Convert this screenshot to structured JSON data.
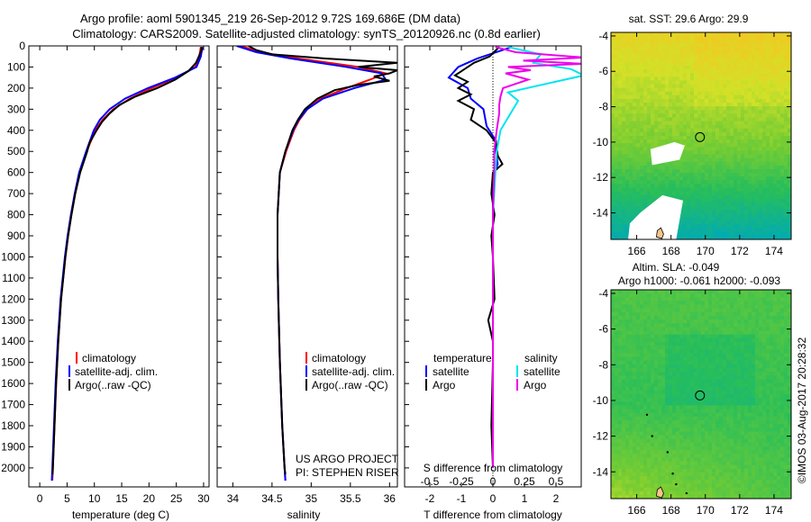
{
  "header": {
    "title_line1": "Argo profile: aoml 5901345_219 26-Sep-2012 9.72S 169.686E (DM data)",
    "title_line2": "Climatology: CARS2009. Satellite-adjusted climatology: synTS_20120926.nc (0.8d earlier)"
  },
  "colors": {
    "climatology": "#ff0000",
    "satellite": "#0000ff",
    "argo": "#000000",
    "t_sat": "#0000ff",
    "t_argo": "#000000",
    "s_sat": "#00e5ee",
    "s_argo": "#ee00ee"
  },
  "chart_data": [
    {
      "type": "line",
      "id": "temperature",
      "xlabel": "temperature (deg C)",
      "ylabel": "",
      "xlim": [
        -2,
        31
      ],
      "ylim": [
        2090,
        0
      ],
      "xticks": [
        0,
        5,
        10,
        15,
        20,
        25,
        30
      ],
      "yticks": [
        0,
        100,
        200,
        300,
        400,
        500,
        600,
        700,
        800,
        900,
        1000,
        1100,
        1200,
        1300,
        1400,
        1500,
        1600,
        1700,
        1800,
        1900,
        2000
      ],
      "legend": {
        "position": "bottom-left",
        "entries": [
          "climatology",
          "satellite-adj. clim.",
          "Argo(..raw -QC)"
        ]
      },
      "series": [
        {
          "name": "climatology",
          "color": "#ff0000",
          "depth": [
            5,
            50,
            100,
            150,
            200,
            250,
            300,
            350,
            400,
            500,
            600,
            700,
            800,
            900,
            1000,
            1200,
            1400,
            1600,
            1800,
            2000,
            2060
          ],
          "values": [
            29.5,
            29.2,
            28.5,
            25,
            20.5,
            16.5,
            13.5,
            11.5,
            10.2,
            8.6,
            7.3,
            6.5,
            5.8,
            5.2,
            4.7,
            3.9,
            3.4,
            3.0,
            2.7,
            2.4,
            2.3
          ]
        },
        {
          "name": "satellite-adj. clim.",
          "color": "#0000ff",
          "depth": [
            5,
            50,
            100,
            150,
            200,
            250,
            300,
            350,
            400,
            500,
            600,
            700,
            800,
            900,
            1000,
            1200,
            1400,
            1600,
            1800,
            2000,
            2060
          ],
          "values": [
            29.8,
            29.5,
            28.7,
            24.8,
            19.8,
            15.6,
            12.8,
            11.0,
            9.9,
            8.5,
            7.2,
            6.4,
            5.7,
            5.1,
            4.6,
            3.8,
            3.3,
            2.9,
            2.6,
            2.3,
            2.2
          ]
        },
        {
          "name": "Argo(..raw -QC)",
          "color": "#000000",
          "depth": [
            5,
            20,
            40,
            80,
            120,
            160,
            200,
            240,
            280,
            320,
            360,
            400,
            460,
            500,
            600,
            700,
            800,
            900,
            1000,
            1200,
            1400,
            1600,
            1800,
            2000,
            2030
          ],
          "values": [
            29.6,
            29.6,
            29.3,
            28.6,
            27.2,
            24.8,
            21.5,
            17.5,
            14.6,
            12.8,
            11.4,
            10.4,
            9.1,
            8.7,
            7.4,
            6.5,
            5.8,
            5.2,
            4.7,
            3.9,
            3.4,
            3.0,
            2.7,
            2.4,
            2.35
          ]
        }
      ]
    },
    {
      "type": "line",
      "id": "salinity",
      "xlabel": "salinity",
      "ylabel": "",
      "xlim": [
        33.8,
        36.1
      ],
      "ylim": [
        2090,
        0
      ],
      "xticks": [
        34,
        34.5,
        35,
        35.5,
        36
      ],
      "legend": {
        "position": "bottom-left",
        "entries": [
          "climatology",
          "satellite-adj. clim.",
          "Argo(..raw -QC)"
        ]
      },
      "annotations": [
        "US ARGO PROJECT",
        "PI: STEPHEN RISER"
      ],
      "series": [
        {
          "name": "climatology",
          "color": "#ff0000",
          "depth": [
            0,
            30,
            60,
            100,
            130,
            160,
            200,
            250,
            300,
            350,
            400,
            500,
            600,
            800,
            1000,
            1200,
            1500,
            1800,
            2000,
            2060
          ],
          "values": [
            34.1,
            34.35,
            34.85,
            35.6,
            35.95,
            35.75,
            35.45,
            35.12,
            34.95,
            34.85,
            34.78,
            34.68,
            34.6,
            34.57,
            34.57,
            34.58,
            34.6,
            34.63,
            34.66,
            34.67
          ]
        },
        {
          "name": "satellite-adj. clim.",
          "color": "#0000ff",
          "depth": [
            0,
            30,
            60,
            100,
            130,
            160,
            200,
            250,
            300,
            350,
            400,
            500,
            600,
            800,
            1000,
            1200,
            1500,
            1800,
            2000,
            2060
          ],
          "values": [
            34.05,
            34.3,
            34.75,
            35.45,
            35.9,
            35.95,
            35.55,
            35.15,
            34.95,
            34.84,
            34.77,
            34.67,
            34.6,
            34.57,
            34.57,
            34.58,
            34.6,
            34.63,
            34.66,
            34.67
          ]
        },
        {
          "name": "Argo(..raw -QC)",
          "color": "#000000",
          "depth": [
            0,
            20,
            40,
            60,
            80,
            100,
            115,
            130,
            145,
            165,
            185,
            210,
            250,
            300,
            350,
            400,
            500,
            600,
            800,
            1000,
            1200,
            1500,
            1800,
            2000,
            2030
          ],
          "values": [
            34.2,
            34.3,
            34.5,
            35.2,
            36.1,
            35.6,
            36.1,
            36.0,
            35.8,
            36.0,
            35.6,
            35.3,
            35.08,
            34.92,
            34.83,
            34.76,
            34.67,
            34.6,
            34.57,
            34.57,
            34.58,
            34.6,
            34.63,
            34.66,
            34.67
          ]
        }
      ]
    },
    {
      "type": "line",
      "id": "difference",
      "xlabel": "T difference from climatology",
      "x2label": "S difference from climatology",
      "xlim": [
        -2.8,
        2.8
      ],
      "ylim": [
        2090,
        0
      ],
      "xticks": [
        -2,
        -1,
        0,
        1,
        2
      ],
      "x2ticks": [
        -0.5,
        -0.25,
        0,
        0.25,
        0.5
      ],
      "x2ticklabels": [
        "-0.5",
        "-0.25",
        "0",
        "0.25",
        "0.5"
      ],
      "legend": {
        "position": "bottom",
        "group_temperature": "temperature",
        "group_salinity": "salinity",
        "entries": [
          "satellite",
          "Argo",
          "satellite",
          "Argo"
        ]
      },
      "series": [
        {
          "name": "temperature satellite",
          "color": "#0000ff",
          "depth": [
            5,
            60,
            100,
            150,
            200,
            250,
            300,
            380,
            450,
            500,
            560,
            600,
            700,
            800,
            1000,
            1200,
            1500,
            1800,
            2000
          ],
          "values": [
            0.6,
            -0.5,
            -1.1,
            -1.4,
            -0.8,
            -0.7,
            -0.3,
            -0.2,
            0.1,
            0.1,
            0.15,
            0.05,
            0.0,
            0.0,
            0.0,
            0.0,
            0.0,
            0.0,
            0.0
          ]
        },
        {
          "name": "temperature Argo",
          "color": "#000000",
          "depth": [
            5,
            50,
            80,
            110,
            140,
            170,
            200,
            230,
            260,
            300,
            350,
            400,
            460,
            520,
            560,
            600,
            700,
            800,
            900,
            1000,
            1200,
            1300,
            1400,
            1500,
            1800,
            2000
          ],
          "values": [
            0.2,
            -0.1,
            -0.6,
            -0.9,
            -1.2,
            -0.8,
            -1.1,
            -0.7,
            -1.1,
            -0.6,
            -0.7,
            -0.2,
            0.1,
            0.15,
            0.3,
            0.0,
            -0.05,
            0.05,
            -0.05,
            0.0,
            0.05,
            -0.15,
            0.0,
            0.0,
            -0.05,
            0.0
          ]
        },
        {
          "name": "salinity satellite",
          "color": "#00e5ee",
          "depth": [
            5,
            40,
            80,
            110,
            140,
            180,
            220,
            260,
            300,
            400,
            500,
            600,
            800,
            1000,
            1500,
            2000
          ],
          "values": [
            0.12,
            0.38,
            0.32,
            0.62,
            0.72,
            0.42,
            0.12,
            0.2,
            0.16,
            0.06,
            0.03,
            0.02,
            0.0,
            0.0,
            0.0,
            0.0
          ]
        },
        {
          "name": "salinity Argo",
          "color": "#ee00ee",
          "depth": [
            5,
            30,
            55,
            70,
            85,
            100,
            115,
            130,
            160,
            200,
            240,
            280,
            320,
            400,
            500,
            600,
            800,
            1000,
            1500,
            2000
          ],
          "values": [
            0.02,
            0.18,
            0.72,
            0.24,
            0.72,
            0.12,
            0.3,
            0.1,
            0.28,
            0.08,
            0.06,
            0.05,
            0.05,
            0.03,
            0.01,
            0.01,
            0.0,
            0.0,
            0.0,
            0.0
          ]
        }
      ]
    },
    {
      "type": "heatmap",
      "id": "sst_map",
      "title": "sat. SST: 29.6 Argo: 29.9",
      "xlim": [
        164.5,
        175
      ],
      "ylim": [
        -15.5,
        -3.8
      ],
      "xticks": [
        166,
        168,
        170,
        172,
        174
      ],
      "yticks": [
        -4,
        -6,
        -8,
        -10,
        -12,
        -14
      ],
      "marker": {
        "lon": 169.686,
        "lat": -9.72
      }
    },
    {
      "type": "heatmap",
      "id": "sla_map",
      "title": "Altim. SLA: -0.049",
      "subtitle": "Argo h1000: -0.061 h2000: -0.093",
      "xlim": [
        164.5,
        175
      ],
      "ylim": [
        -15.5,
        -3.8
      ],
      "xticks": [
        166,
        168,
        170,
        172,
        174
      ],
      "yticks": [
        -4,
        -6,
        -8,
        -10,
        -12,
        -14
      ],
      "marker": {
        "lon": 169.686,
        "lat": -9.72
      }
    }
  ],
  "credit": "©IMOS 03-Aug-2017 20:28:32"
}
